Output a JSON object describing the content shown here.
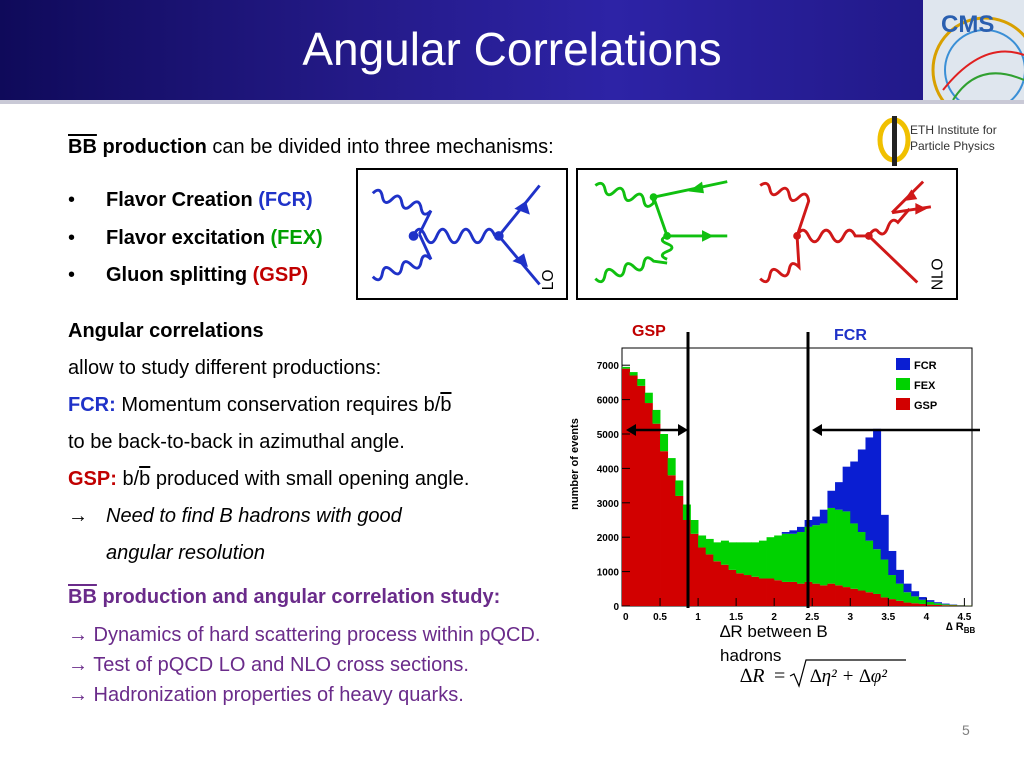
{
  "title": "Angular Correlations",
  "intro": {
    "bb": "BB",
    "bold": " production",
    "rest": " can be divided into three mechanisms:"
  },
  "bullets": [
    {
      "label": "Flavor Creation ",
      "tag": "(FCR)"
    },
    {
      "label": "Flavor excitation ",
      "tag": "(FEX)"
    },
    {
      "label": "Gluon splitting ",
      "tag": "(GSP)"
    }
  ],
  "bullet_char": "•",
  "diagram_labels": {
    "lo": "LO",
    "nlo": "NLO"
  },
  "eth_logo": {
    "line1": "ETH Institute for",
    "line2": "Particle Physics"
  },
  "cms_logo": "CMS",
  "angular": {
    "heading": "Angular correlations",
    "line1": "allow to study different productions:",
    "fcr_label": "FCR:",
    "fcr_text": " Momentum conservation requires b/",
    "fcr_bbar": "b",
    "line3": "to be back-to-back in azimuthal angle.",
    "gsp_label": "GSP:",
    "gsp_text1": " b/",
    "gsp_bbar": "b",
    "gsp_text2": " produced with small opening angle.",
    "arrow": "→",
    "need1": "Need to find B hadrons with good",
    "need2": "angular resolution"
  },
  "study": {
    "heading_bb": "BB",
    "heading_rest": " production and angular correlation study:",
    "items": [
      "→ Dynamics of hard scattering process within pQCD.",
      "→ Test of pQCD LO and NLO cross sections.",
      "→ Hadronization properties of heavy quarks."
    ]
  },
  "dr_text": "∆R between B hadrons",
  "formula": {
    "lhs": "∆R",
    "eq": "=",
    "rhs": "∆η² + ∆φ²"
  },
  "page_number": "5",
  "colors": {
    "fcr": "#0a1ed2",
    "fex": "#00d200",
    "gsp": "#d20000",
    "title_bg": "#1e1680"
  },
  "chart_data": {
    "type": "bar",
    "stacked": true,
    "xlabel": "∆ R_BB",
    "ylabel": "number of events",
    "xlim": [
      0,
      4.6
    ],
    "ylim": [
      0,
      7500
    ],
    "xticks": [
      "0.5",
      "1",
      "1.5",
      "2",
      "2.5",
      "3",
      "3.5",
      "4",
      "4.5"
    ],
    "yticks": [
      "0",
      "1000",
      "2000",
      "3000",
      "4000",
      "5000",
      "6000",
      "7000"
    ],
    "bin_width": 0.1,
    "region_labels": {
      "gsp": "GSP",
      "fcr": "FCR"
    },
    "series": [
      {
        "name": "GSP",
        "color": "#d20000",
        "values": [
          6900,
          6700,
          6400,
          5900,
          5300,
          4500,
          3800,
          3200,
          2500,
          2100,
          1700,
          1500,
          1300,
          1200,
          1050,
          950,
          900,
          850,
          800,
          800,
          750,
          700,
          700,
          650,
          700,
          650,
          600,
          650,
          600,
          550,
          500,
          450,
          400,
          350,
          250,
          200,
          150,
          100,
          80,
          60,
          40,
          30,
          20,
          15,
          10,
          5
        ]
      },
      {
        "name": "FEX",
        "color": "#00d200",
        "values": [
          50,
          100,
          200,
          300,
          400,
          500,
          500,
          450,
          450,
          400,
          350,
          450,
          550,
          700,
          800,
          900,
          950,
          1000,
          1100,
          1200,
          1300,
          1400,
          1400,
          1500,
          1600,
          1700,
          1800,
          2200,
          2200,
          2200,
          1900,
          1700,
          1500,
          1300,
          1100,
          700,
          500,
          300,
          200,
          120,
          80,
          50,
          30,
          20,
          10,
          5
        ]
      },
      {
        "name": "FCR",
        "color": "#0a1ed2",
        "values": [
          0,
          0,
          0,
          0,
          0,
          0,
          0,
          0,
          0,
          0,
          0,
          0,
          0,
          0,
          0,
          0,
          0,
          0,
          0,
          0,
          0,
          50,
          100,
          150,
          200,
          250,
          400,
          500,
          800,
          1300,
          1800,
          2400,
          3000,
          3500,
          1300,
          700,
          400,
          250,
          150,
          80,
          50,
          30,
          20,
          10,
          5,
          0
        ]
      }
    ]
  }
}
